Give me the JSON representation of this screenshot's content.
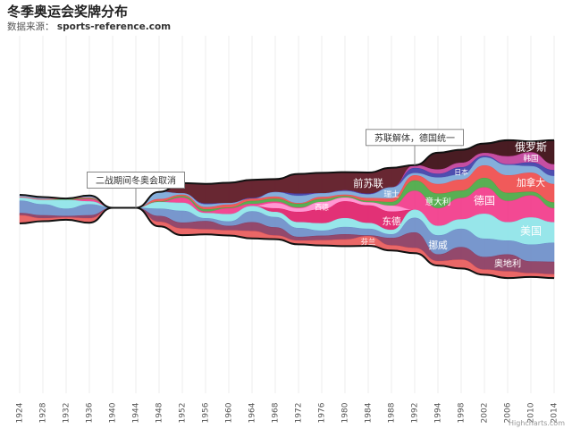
{
  "chart_data": {
    "type": "area",
    "subtype": "streamgraph",
    "title": "冬季奥运会奖牌分布",
    "subtitle_label": "数据来源：",
    "subtitle_source": "sports-reference.com",
    "credits": "Highcharts.com",
    "x": [
      "1924",
      "1928",
      "1932",
      "1936",
      "1940",
      "1944",
      "1948",
      "1952",
      "1956",
      "1960",
      "1964",
      "1968",
      "1972",
      "1976",
      "1980",
      "1984",
      "1988",
      "1992",
      "1994",
      "1998",
      "2002",
      "2006",
      "2010",
      "2014"
    ],
    "annotations": [
      {
        "text": "二战期间冬奥会取消",
        "x": "1944"
      },
      {
        "text": "苏联解体，德国统一",
        "x": "1992"
      }
    ],
    "series": [
      {
        "name": "前苏联",
        "color": "#5b1521",
        "values": [
          0,
          0,
          0,
          0,
          0,
          0,
          0,
          14,
          27,
          28,
          25,
          18,
          27,
          28,
          25,
          29,
          27,
          0,
          0,
          0,
          0,
          0,
          0,
          0
        ]
      },
      {
        "name": "俄罗斯",
        "color": "#3a0910",
        "values": [
          0,
          0,
          0,
          0,
          0,
          0,
          0,
          0,
          0,
          0,
          0,
          0,
          0,
          0,
          0,
          0,
          0,
          0,
          23,
          18,
          13,
          22,
          15,
          33
        ]
      },
      {
        "name": "韩国",
        "color": "#c0409a",
        "values": [
          0,
          0,
          0,
          0,
          0,
          0,
          0,
          0,
          0,
          0,
          0,
          0,
          0,
          0,
          0,
          0,
          0,
          4,
          6,
          6,
          4,
          11,
          14,
          8
        ]
      },
      {
        "name": "日本",
        "color": "#3f3fa8",
        "values": [
          0,
          0,
          0,
          0,
          0,
          0,
          0,
          0,
          1,
          0,
          1,
          0,
          3,
          0,
          1,
          1,
          0,
          7,
          5,
          10,
          2,
          1,
          5,
          8
        ]
      },
      {
        "name": "瑞士",
        "color": "#7ba7d8",
        "values": [
          3,
          3,
          0,
          3,
          0,
          0,
          10,
          2,
          4,
          2,
          0,
          6,
          10,
          5,
          5,
          5,
          15,
          3,
          9,
          7,
          11,
          14,
          9,
          11
        ]
      },
      {
        "name": "加拿大",
        "color": "#ef4c4c",
        "values": [
          1,
          1,
          1,
          1,
          0,
          0,
          3,
          2,
          3,
          4,
          3,
          3,
          1,
          3,
          2,
          4,
          5,
          7,
          13,
          15,
          17,
          24,
          26,
          25
        ]
      },
      {
        "name": "意大利",
        "color": "#4aa844",
        "values": [
          0,
          0,
          1,
          1,
          0,
          0,
          1,
          2,
          3,
          1,
          4,
          4,
          5,
          4,
          2,
          2,
          5,
          14,
          20,
          10,
          13,
          11,
          5,
          8
        ]
      },
      {
        "name": "德国",
        "color": "#f23a8a",
        "values": [
          0,
          0,
          0,
          3,
          0,
          0,
          0,
          7,
          2,
          8,
          3,
          2,
          1,
          0,
          0,
          0,
          0,
          26,
          24,
          29,
          36,
          29,
          30,
          19
        ]
      },
      {
        "name": "西德",
        "color": "#ff8fcf",
        "values": [
          0,
          0,
          0,
          0,
          0,
          0,
          0,
          0,
          0,
          0,
          0,
          7,
          5,
          10,
          5,
          4,
          8,
          0,
          0,
          0,
          0,
          0,
          0,
          0
        ]
      },
      {
        "name": "东德",
        "color": "#e0206a",
        "values": [
          0,
          0,
          0,
          0,
          0,
          0,
          0,
          0,
          0,
          0,
          0,
          5,
          14,
          19,
          23,
          24,
          25,
          0,
          0,
          0,
          0,
          0,
          0,
          0
        ]
      },
      {
        "name": "美国",
        "color": "#8ee4e8",
        "values": [
          4,
          6,
          12,
          4,
          0,
          0,
          9,
          11,
          7,
          10,
          7,
          7,
          8,
          10,
          12,
          8,
          6,
          11,
          13,
          13,
          34,
          25,
          37,
          28
        ]
      },
      {
        "name": "挪威",
        "color": "#6c8ec9",
        "values": [
          17,
          15,
          10,
          15,
          0,
          0,
          10,
          16,
          4,
          6,
          15,
          14,
          12,
          7,
          10,
          9,
          5,
          20,
          26,
          25,
          25,
          19,
          23,
          26
        ]
      },
      {
        "name": "奥地利",
        "color": "#8a3a60",
        "values": [
          3,
          4,
          2,
          4,
          0,
          0,
          8,
          8,
          11,
          6,
          12,
          11,
          5,
          6,
          7,
          1,
          10,
          21,
          9,
          17,
          17,
          23,
          16,
          17
        ]
      },
      {
        "name": "芬兰",
        "color": "#e85a5a",
        "values": [
          11,
          4,
          3,
          6,
          0,
          0,
          6,
          9,
          7,
          7,
          10,
          5,
          5,
          7,
          9,
          13,
          7,
          7,
          6,
          12,
          7,
          9,
          5,
          5
        ]
      }
    ]
  }
}
